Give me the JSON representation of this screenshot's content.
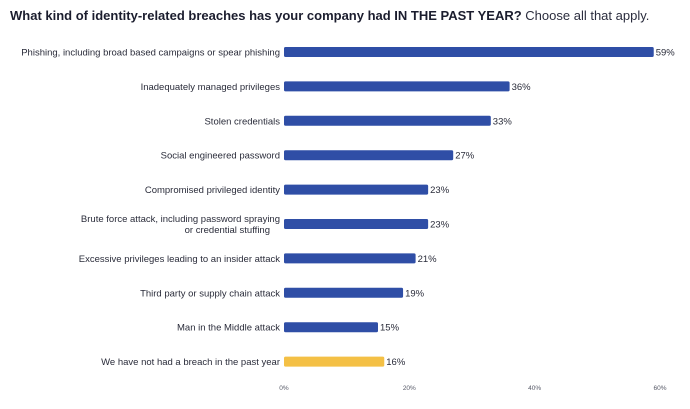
{
  "title": {
    "bold_part": "What kind of identity-related breaches has your company had IN THE PAST YEAR?",
    "light_part": "Choose all that apply."
  },
  "colors": {
    "bar_primary": "#2f4ea6",
    "bar_highlight": "#f4c045",
    "text": "#2a2c3a"
  },
  "chart_data": {
    "type": "bar",
    "orientation": "horizontal",
    "title": "What kind of identity-related breaches has your company had IN THE PAST YEAR? Choose all that apply.",
    "categories": [
      [
        "Phishing, including broad based campaigns or spear phishing"
      ],
      [
        "Inadequately managed privileges"
      ],
      [
        "Stolen credentials"
      ],
      [
        "Social engineered password"
      ],
      [
        "Compromised privileged identity"
      ],
      [
        "Brute force attack, including password spraying",
        "or credential stuffing"
      ],
      [
        "Excessive privileges leading to an insider attack"
      ],
      [
        "Third party or supply chain attack"
      ],
      [
        "Man in the Middle attack"
      ],
      [
        "We have not had a breach in the past year"
      ]
    ],
    "values": [
      59,
      36,
      33,
      27,
      23,
      23,
      21,
      19,
      15,
      16
    ],
    "value_labels": [
      "59%",
      "36%",
      "33%",
      "27%",
      "23%",
      "23%",
      "21%",
      "19%",
      "15%",
      "16%"
    ],
    "highlight_index": 9,
    "xlim": [
      0,
      60
    ],
    "xticks": [
      0,
      20,
      40,
      60
    ],
    "xtick_labels": [
      "0%",
      "20%",
      "40%",
      "60%"
    ],
    "grid": false,
    "xlabel": "",
    "ylabel": ""
  }
}
